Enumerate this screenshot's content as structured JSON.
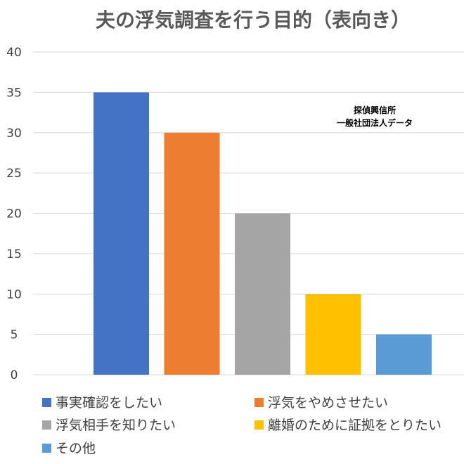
{
  "chart_data": {
    "type": "bar",
    "title": "夫の浮気調査を行う目的（表向き）",
    "categories": [
      "事実確認をしたい",
      "浮気をやめさせたい",
      "浮気相手を知りたい",
      "離婚のために証拠をとりたい",
      "その他"
    ],
    "values": [
      35,
      30,
      20,
      10,
      5
    ],
    "colors": [
      "#4472c4",
      "#ed7d31",
      "#a5a5a5",
      "#ffc000",
      "#5b9bd5"
    ],
    "ylim": [
      0,
      40
    ],
    "yticks": [
      0,
      5,
      10,
      15,
      20,
      25,
      30,
      35,
      40
    ],
    "xlabel": "",
    "ylabel": "",
    "grid": true,
    "legend_position": "bottom",
    "annotation": [
      "探偵興信所",
      "一般社団法人データ"
    ]
  }
}
